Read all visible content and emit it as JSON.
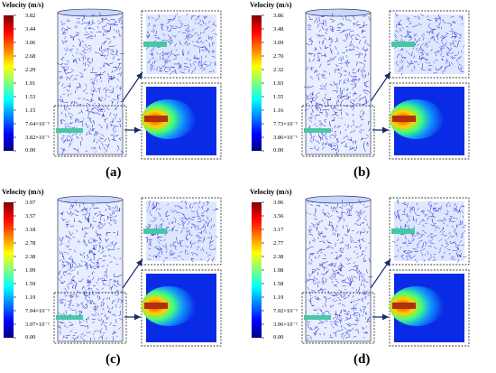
{
  "panels": [
    {
      "letter": "(a)",
      "colorbar_title": "Velocity (m/s)",
      "ticks": [
        "3.82",
        "3.44",
        "3.06",
        "2.68",
        "2.29",
        "1.91",
        "1.53",
        "1.15",
        "7.64×10⁻¹",
        "3.82×10⁻¹",
        "0.00"
      ]
    },
    {
      "letter": "(b)",
      "colorbar_title": "Velocity (m/s)",
      "ticks": [
        "3.86",
        "3.48",
        "3.09",
        "2.70",
        "2.32",
        "1.93",
        "1.55",
        "1.16",
        "7.73×10⁻¹",
        "3.86×10⁻¹",
        "0.00"
      ]
    },
    {
      "letter": "(c)",
      "colorbar_title": "Velocity (m/s)",
      "ticks": [
        "3.97",
        "3.57",
        "3.18",
        "2.78",
        "2.38",
        "1.99",
        "1.59",
        "1.19",
        "7.94×10⁻¹",
        "3.97×10⁻¹",
        "0.00"
      ]
    },
    {
      "letter": "(d)",
      "colorbar_title": "Velocity (m/s)",
      "ticks": [
        "3.96",
        "3.56",
        "3.17",
        "2.77",
        "2.38",
        "1.98",
        "1.58",
        "1.19",
        "7.92×10⁻¹",
        "3.96×10⁻¹",
        "0.00"
      ]
    }
  ],
  "colors": {
    "jet": [
      "#00007f",
      "#0000ff",
      "#007fff",
      "#00ffff",
      "#7fff7f",
      "#ffff00",
      "#ff7f00",
      "#ff0000",
      "#7f0000"
    ],
    "field_background": "#0a2be6",
    "frame": "#10183a",
    "jet_nozzle": "#47c7a4",
    "arrow": "#1a2a6c"
  }
}
